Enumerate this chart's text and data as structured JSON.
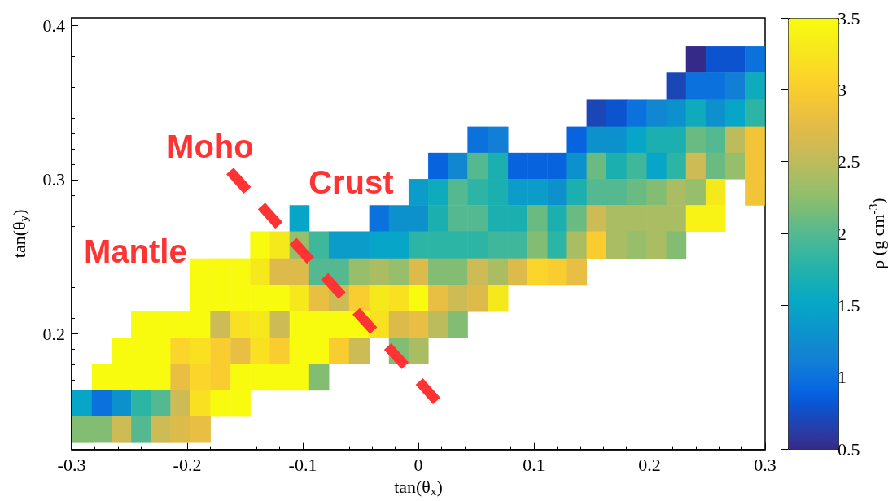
{
  "chart_data": {
    "type": "heatmap",
    "xlabel": "tan(θ$_{x}$)",
    "ylabel": "tan(θ$_{y}$)",
    "clabel": "ρ (g cm$^{-3}$)",
    "xlim": [
      -0.3,
      0.3
    ],
    "xticks": [
      -0.3,
      -0.2,
      -0.1,
      0,
      0.1,
      0.2,
      0.3
    ],
    "ylim": [
      0.125,
      0.405
    ],
    "yticks": [
      0.2,
      0.3,
      0.4
    ],
    "clim": [
      0.5,
      3.5
    ],
    "cticks": [
      0.5,
      1,
      1.5,
      2,
      2.5,
      3,
      3.5
    ],
    "grid": false,
    "x": [
      -0.291,
      -0.274,
      -0.257,
      -0.24,
      -0.223,
      -0.206,
      -0.189,
      -0.171,
      -0.154,
      -0.137,
      -0.12,
      -0.103,
      -0.086,
      -0.069,
      -0.051,
      -0.034,
      -0.017,
      0,
      0.017,
      0.034,
      0.051,
      0.069,
      0.086,
      0.103,
      0.12,
      0.137,
      0.154,
      0.171,
      0.189,
      0.206,
      0.223,
      0.24,
      0.257,
      0.274,
      0.291
    ],
    "y": [
      0.378,
      0.361,
      0.343,
      0.326,
      0.309,
      0.292,
      0.275,
      0.258,
      0.24,
      0.223,
      0.206,
      0.189,
      0.172,
      0.155,
      0.138
    ],
    "cells": [
      [
        null,
        null,
        null,
        null,
        null,
        null,
        null,
        null,
        null,
        null,
        null,
        null,
        null,
        null,
        null,
        null,
        null,
        null,
        null,
        null,
        null,
        null,
        null,
        null,
        null,
        null,
        null,
        null,
        null,
        null,
        null,
        0.5,
        0.8,
        0.8,
        1.0
      ],
      [
        null,
        null,
        null,
        null,
        null,
        null,
        null,
        null,
        null,
        null,
        null,
        null,
        null,
        null,
        null,
        null,
        null,
        null,
        null,
        null,
        null,
        null,
        null,
        null,
        null,
        null,
        null,
        null,
        null,
        null,
        0.7,
        1.0,
        1.0,
        1.1,
        1.6
      ],
      [
        null,
        null,
        null,
        null,
        null,
        null,
        null,
        null,
        null,
        null,
        null,
        null,
        null,
        null,
        null,
        null,
        null,
        null,
        null,
        null,
        null,
        null,
        null,
        null,
        null,
        null,
        0.7,
        0.8,
        1.0,
        1.2,
        1.3,
        1.6,
        1.3,
        1.5,
        1.8
      ],
      [
        null,
        null,
        null,
        null,
        null,
        null,
        null,
        null,
        null,
        null,
        null,
        null,
        null,
        null,
        null,
        null,
        null,
        null,
        null,
        null,
        1.0,
        1.1,
        null,
        null,
        null,
        0.9,
        1.3,
        1.3,
        1.5,
        1.7,
        1.7,
        2.1,
        2.0,
        2.5,
        2.9
      ],
      [
        null,
        null,
        null,
        null,
        null,
        null,
        null,
        null,
        null,
        null,
        null,
        null,
        null,
        null,
        null,
        null,
        null,
        null,
        0.9,
        1.2,
        2.0,
        1.7,
        0.9,
        0.9,
        0.9,
        1.3,
        2.1,
        1.7,
        1.9,
        1.5,
        1.8,
        2.6,
        2.1,
        2.3,
        2.9
      ],
      [
        null,
        null,
        null,
        null,
        null,
        null,
        null,
        null,
        null,
        null,
        null,
        null,
        null,
        null,
        null,
        null,
        null,
        1.4,
        1.6,
        2.0,
        1.8,
        1.7,
        1.4,
        1.4,
        1.3,
        1.7,
        2.0,
        2.0,
        2.1,
        2.2,
        2.4,
        2.3,
        3.3,
        null,
        2.9
      ],
      [
        null,
        null,
        null,
        null,
        null,
        null,
        null,
        null,
        null,
        null,
        null,
        1.5,
        null,
        null,
        null,
        1.0,
        1.3,
        1.3,
        1.7,
        2.0,
        2.0,
        1.7,
        1.7,
        2.1,
        1.7,
        2.1,
        2.6,
        2.4,
        2.4,
        2.4,
        2.4,
        3.4,
        3.4,
        null,
        null
      ],
      [
        null,
        null,
        null,
        null,
        null,
        null,
        null,
        null,
        null,
        3.5,
        3.3,
        2.3,
        1.9,
        1.4,
        1.4,
        1.5,
        1.5,
        1.8,
        1.8,
        1.8,
        1.8,
        1.9,
        1.9,
        2.2,
        1.8,
        2.4,
        3.0,
        2.4,
        2.3,
        2.4,
        2.2,
        null,
        null,
        null,
        null
      ],
      [
        null,
        null,
        null,
        null,
        null,
        null,
        3.5,
        3.5,
        3.5,
        3.3,
        2.7,
        2.7,
        2.0,
        2.0,
        2.3,
        2.4,
        2.3,
        2.7,
        2.2,
        2.2,
        2.6,
        2.4,
        2.7,
        3.1,
        3.0,
        2.8,
        null,
        null,
        null,
        null,
        null,
        null,
        null,
        null,
        null
      ],
      [
        null,
        null,
        null,
        null,
        null,
        null,
        3.5,
        3.5,
        3.5,
        3.5,
        3.5,
        3.3,
        2.8,
        2.6,
        3.0,
        3.3,
        3.2,
        3.5,
        2.8,
        2.6,
        2.7,
        3.3,
        null,
        null,
        null,
        null,
        null,
        null,
        null,
        null,
        null,
        null,
        null,
        null,
        null
      ],
      [
        null,
        null,
        null,
        3.5,
        3.5,
        3.5,
        3.5,
        2.6,
        3.2,
        3.3,
        2.6,
        3.5,
        3.5,
        3.5,
        3.5,
        3.2,
        2.7,
        2.8,
        2.5,
        2.2,
        null,
        null,
        null,
        null,
        null,
        null,
        null,
        null,
        null,
        null,
        null,
        null,
        null,
        null,
        null
      ],
      [
        null,
        null,
        3.5,
        3.5,
        3.5,
        3.1,
        3.2,
        3.0,
        2.8,
        3.2,
        3.0,
        3.5,
        3.5,
        3.0,
        2.6,
        null,
        2.2,
        2.4,
        null,
        null,
        null,
        null,
        null,
        null,
        null,
        null,
        null,
        null,
        null,
        null,
        null,
        null,
        null,
        null,
        null
      ],
      [
        null,
        3.5,
        3.5,
        3.5,
        3.5,
        2.8,
        3.1,
        3.0,
        3.5,
        3.5,
        3.5,
        3.5,
        2.2,
        null,
        null,
        null,
        null,
        null,
        null,
        null,
        null,
        null,
        null,
        null,
        null,
        null,
        null,
        null,
        null,
        null,
        null,
        null,
        null,
        null,
        null
      ],
      [
        1.5,
        1.0,
        1.3,
        1.8,
        2.0,
        2.6,
        3.2,
        3.5,
        3.5,
        null,
        null,
        null,
        null,
        null,
        null,
        null,
        null,
        null,
        null,
        null,
        null,
        null,
        null,
        null,
        null,
        null,
        null,
        null,
        null,
        null,
        null,
        null,
        null,
        null,
        null
      ],
      [
        2.2,
        2.2,
        2.6,
        2.0,
        2.6,
        2.7,
        2.8,
        null,
        null,
        null,
        null,
        null,
        null,
        null,
        null,
        null,
        null,
        null,
        null,
        null,
        null,
        null,
        null,
        null,
        null,
        null,
        null,
        null,
        null,
        null,
        null,
        null,
        null,
        null,
        null
      ]
    ],
    "series": [
      {
        "type": "line",
        "color": "#ff3333",
        "line_style": "dashed",
        "x": [
          -0.163,
          0.0185
        ],
        "values": [
          0.3057,
          0.1543
        ]
      }
    ],
    "annotations": [
      "Moho",
      "Crust",
      "Mantle"
    ]
  }
}
